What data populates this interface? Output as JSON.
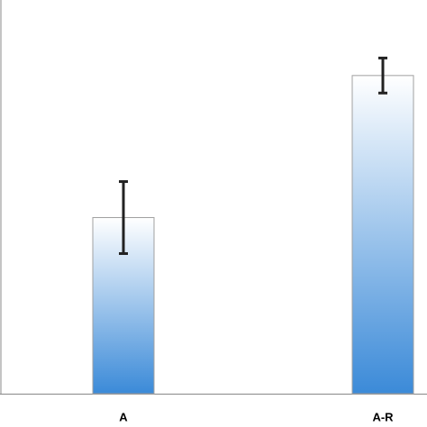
{
  "chart_data": {
    "type": "bar",
    "categories": [
      "A",
      "A-R"
    ],
    "values": [
      181,
      327
    ],
    "errors": [
      37,
      18
    ],
    "color": "#3b8ad8",
    "ylim": [
      0,
      400
    ]
  }
}
